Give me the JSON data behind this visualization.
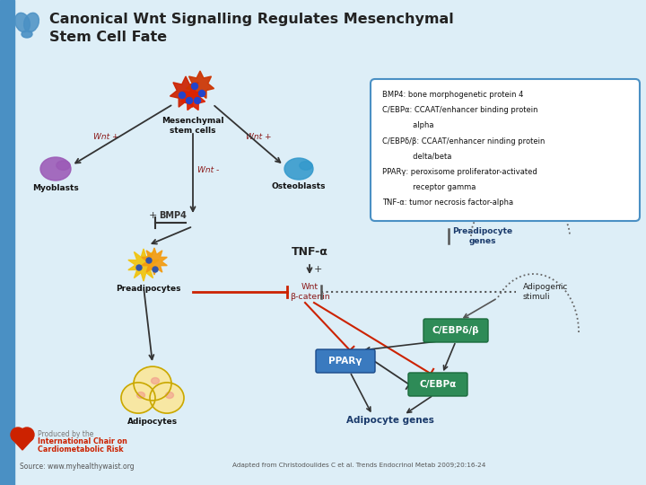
{
  "title_line1": "Canonical Wnt Signalling Regulates Mesenchymal",
  "title_line2": "Stem Cell Fate",
  "bg_color": "#ddeef7",
  "left_bar_color": "#4a90c4",
  "title_color": "#222222",
  "legend_box_text": [
    "BMP4: bone morphogenetic protein 4",
    "C/EBPα: CCAAT/enhancer binding protein",
    "             alpha",
    "C/EBPδ/β: CCAAT/enhancer ninding protein",
    "             delta/beta",
    "PPARγ: peroxisome proliferator-activated",
    "             receptor gamma",
    "TNF-α: tumor necrosis factor-alpha"
  ],
  "legend_box_color": "#4a90c4",
  "legend_box_bg": "#ffffff",
  "wnt_color": "#8b1a1a",
  "arrow_color": "#333333",
  "red_color": "#cc2200",
  "dark_blue": "#1a3a6b",
  "green_color": "#2e8b57",
  "blue_color": "#3a7abf",
  "source_text": "Source: www.myhealthywaist.org",
  "adapted_text": "Adapted from Christodoulides C et al. Trends Endocrinol Metab 2009;20:16-24",
  "produced_text": "Produced by the"
}
